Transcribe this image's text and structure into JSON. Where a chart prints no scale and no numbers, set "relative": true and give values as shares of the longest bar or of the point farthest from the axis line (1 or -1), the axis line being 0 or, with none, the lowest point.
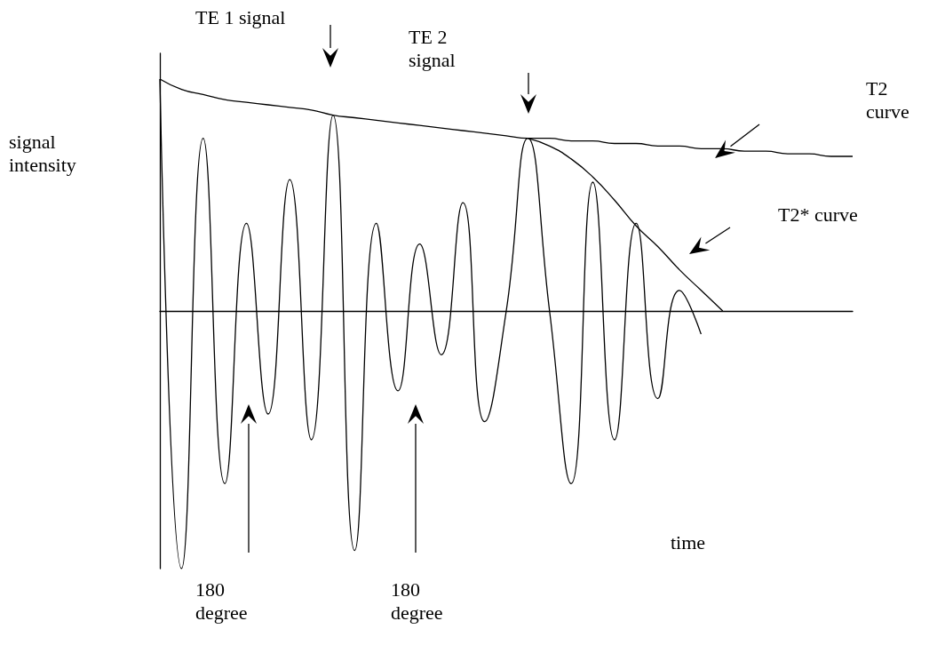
{
  "chart_data": {
    "type": "line",
    "relative": true,
    "xlabel": "time",
    "ylabel": "signal intensity",
    "marker": "none",
    "line_style": "solid",
    "categories": [
      null,
      null,
      null,
      null,
      null,
      null,
      null,
      null,
      null,
      null,
      null,
      null,
      null,
      null,
      null,
      null,
      null,
      null,
      null,
      null,
      null,
      null,
      null,
      null,
      null,
      null,
      null,
      null,
      null,
      null,
      null,
      null,
      null
    ],
    "series": [
      {
        "color": "#000000",
        "values": [
          0.9,
          -1.0,
          0.67,
          -0.67,
          0.34,
          -0.4,
          0.51,
          -0.5,
          0.76,
          -0.93,
          0.34,
          -0.31,
          0.26,
          -0.17,
          0.42,
          -0.43,
          0,
          0.67,
          0,
          -0.67,
          0.5,
          -0.5,
          0.34,
          -0.34,
          0.08,
          -0.09,
          null,
          null,
          null,
          null,
          null,
          null,
          null
        ]
      },
      {
        "name": "T2 curve",
        "color": "#000000",
        "values": [
          0.9,
          0.86,
          0.84,
          0.82,
          0.81,
          0.8,
          0.79,
          0.78,
          0.76,
          0.75,
          0.74,
          0.73,
          0.72,
          0.71,
          0.7,
          0.69,
          0.68,
          0.67,
          0.67,
          0.66,
          0.66,
          0.65,
          0.65,
          0.64,
          0.64,
          0.63,
          0.63,
          0.62,
          0.62,
          0.61,
          0.61,
          0.6,
          0.6
        ]
      },
      {
        "name": "T2* curve",
        "color": "#000000",
        "values": [
          null,
          null,
          null,
          null,
          null,
          null,
          null,
          null,
          null,
          null,
          null,
          null,
          null,
          null,
          null,
          null,
          null,
          0.67,
          0.64,
          0.59,
          0.52,
          0.43,
          0.33,
          0.25,
          0.16,
          0.08,
          0,
          null,
          null,
          null,
          null,
          null,
          null
        ]
      }
    ],
    "annotations": [
      "TE 1 signal",
      "TE 2 signal",
      "180 degree",
      "180 degree"
    ]
  }
}
